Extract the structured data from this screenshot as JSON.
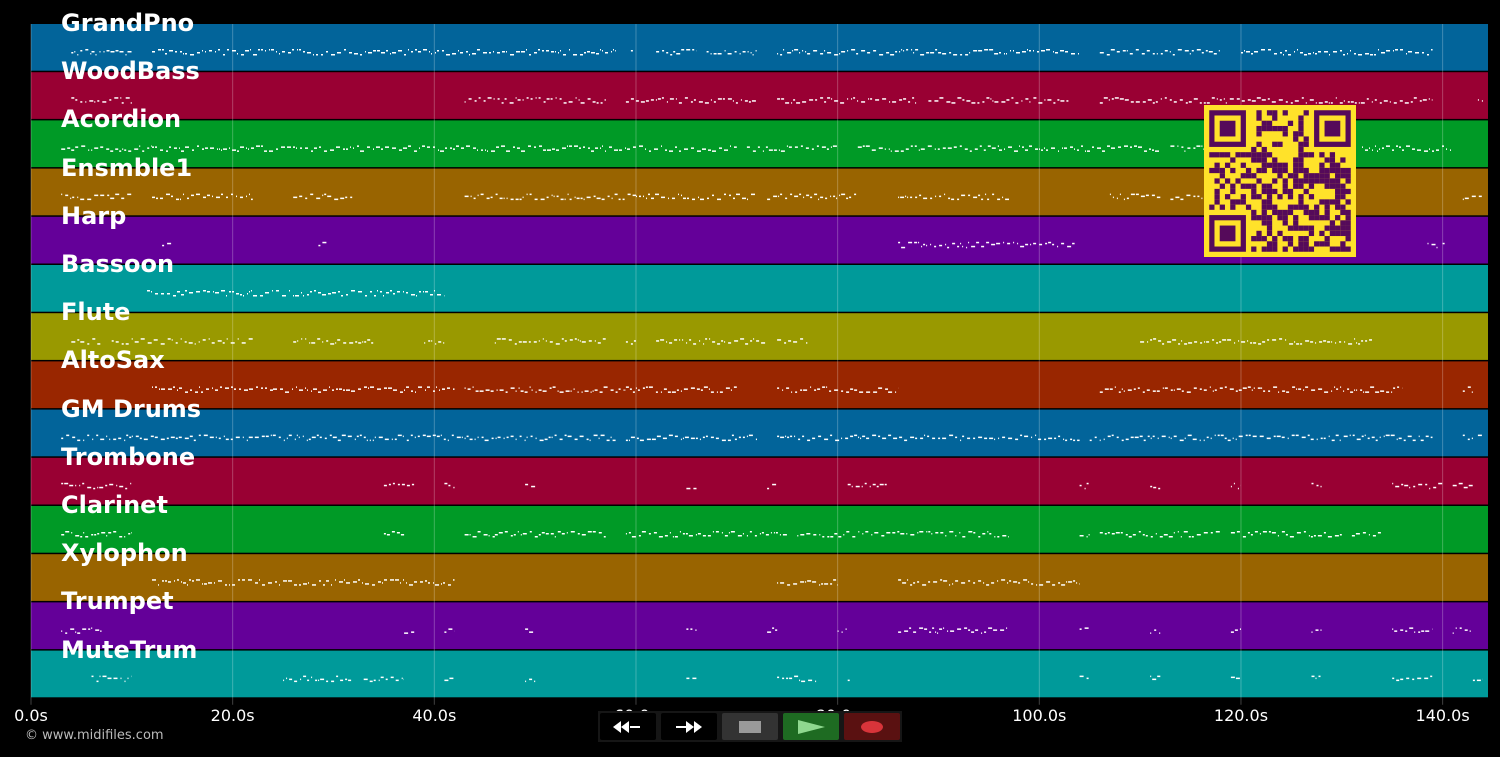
{
  "colors": {
    "background": "#000000",
    "note": "#ffffff",
    "grid": "#ffffff",
    "qr_fg": "#550a5a",
    "qr_bg": "#ffe22a"
  },
  "tracks": [
    {
      "name": "GrandPno",
      "color": "#02649a"
    },
    {
      "name": "WoodBass",
      "color": "#990033"
    },
    {
      "name": "Acordion",
      "color": "#009a26"
    },
    {
      "name": "Ensmble1",
      "color": "#996400"
    },
    {
      "name": "Harp",
      "color": "#640099"
    },
    {
      "name": "Bassoon",
      "color": "#009a9a"
    },
    {
      "name": "Flute",
      "color": "#999900"
    },
    {
      "name": "AltoSax",
      "color": "#992600"
    },
    {
      "name": "GM Drums",
      "color": "#02649a"
    },
    {
      "name": "Trombone",
      "color": "#990033"
    },
    {
      "name": "Clarinet",
      "color": "#009a26"
    },
    {
      "name": "Xylophon",
      "color": "#996400"
    },
    {
      "name": "Trumpet",
      "color": "#640099"
    },
    {
      "name": "MuteTrum",
      "color": "#009a9a"
    }
  ],
  "timeline": {
    "min_seconds": 0,
    "max_seconds": 144.5,
    "ticks": [
      {
        "value": 0,
        "label": "0.0s"
      },
      {
        "value": 20,
        "label": "20.0s"
      },
      {
        "value": 40,
        "label": "40.0s"
      },
      {
        "value": 60,
        "label": "60.0s"
      },
      {
        "value": 80,
        "label": "80.0s"
      },
      {
        "value": 100,
        "label": "100.0s"
      },
      {
        "value": 120,
        "label": "120.0s"
      },
      {
        "value": 140,
        "label": "140.0s"
      }
    ]
  },
  "notes": [
    {
      "track": 0,
      "segments": [
        [
          4,
          6
        ],
        [
          6,
          10
        ],
        [
          12,
          58
        ],
        [
          59.5,
          60
        ],
        [
          62,
          63
        ],
        [
          63,
          66
        ],
        [
          67,
          72
        ],
        [
          74,
          96
        ],
        [
          96,
          104
        ],
        [
          106,
          118
        ],
        [
          120,
          139
        ]
      ]
    },
    {
      "track": 1,
      "segments": [
        [
          4,
          9
        ],
        [
          9,
          10
        ],
        [
          43,
          57
        ],
        [
          59,
          72
        ],
        [
          74,
          88
        ],
        [
          89,
          103
        ],
        [
          106,
          139
        ],
        [
          143.5,
          144
        ]
      ]
    },
    {
      "track": 2,
      "segments": [
        [
          3,
          12
        ],
        [
          12,
          70
        ],
        [
          71,
          80
        ],
        [
          82,
          96
        ],
        [
          96,
          112
        ],
        [
          113,
          120
        ],
        [
          132,
          141
        ]
      ]
    },
    {
      "track": 3,
      "segments": [
        [
          3,
          10
        ],
        [
          12,
          22
        ],
        [
          26,
          32
        ],
        [
          43,
          60
        ],
        [
          60,
          72
        ],
        [
          73,
          82
        ],
        [
          86,
          97
        ],
        [
          107,
          112
        ],
        [
          113,
          130
        ],
        [
          142,
          144
        ]
      ]
    },
    {
      "track": 4,
      "segments": [
        [
          13,
          14
        ],
        [
          28.5,
          29.5
        ],
        [
          86,
          103.5
        ],
        [
          138.5,
          139.5
        ],
        [
          140,
          140.5
        ]
      ]
    },
    {
      "track": 5,
      "segments": [
        [
          11.5,
          41
        ]
      ]
    },
    {
      "track": 6,
      "segments": [
        [
          4,
          7
        ],
        [
          8,
          22
        ],
        [
          26,
          34
        ],
        [
          39,
          41
        ],
        [
          46,
          57
        ],
        [
          59,
          60
        ],
        [
          62,
          73
        ],
        [
          74,
          77
        ],
        [
          110,
          133
        ]
      ]
    },
    {
      "track": 7,
      "segments": [
        [
          12,
          24
        ],
        [
          24,
          42
        ],
        [
          43,
          59
        ],
        [
          59,
          70
        ],
        [
          74,
          85
        ],
        [
          85,
          86
        ],
        [
          106,
          122
        ],
        [
          122,
          136
        ],
        [
          142,
          143
        ]
      ]
    },
    {
      "track": 8,
      "segments": [
        [
          3,
          10
        ],
        [
          10,
          43
        ],
        [
          43,
          58
        ],
        [
          59,
          72
        ],
        [
          74,
          104
        ],
        [
          105,
          139
        ],
        [
          142,
          143
        ],
        [
          143.5,
          144
        ]
      ]
    },
    {
      "track": 9,
      "segments": [
        [
          3,
          10
        ],
        [
          35,
          38
        ],
        [
          41,
          42
        ],
        [
          49,
          50
        ],
        [
          65,
          66
        ],
        [
          73,
          74
        ],
        [
          81,
          85
        ],
        [
          104,
          105
        ],
        [
          111,
          112
        ],
        [
          119,
          120
        ],
        [
          127,
          128
        ],
        [
          135,
          140
        ],
        [
          141,
          143
        ]
      ]
    },
    {
      "track": 10,
      "segments": [
        [
          3,
          10
        ],
        [
          35,
          37
        ],
        [
          43,
          46
        ],
        [
          46,
          57
        ],
        [
          59,
          75
        ],
        [
          76,
          97
        ],
        [
          104,
          105
        ],
        [
          106,
          118
        ],
        [
          119,
          130
        ],
        [
          131,
          134
        ]
      ]
    },
    {
      "track": 11,
      "segments": [
        [
          12,
          42
        ],
        [
          74,
          80
        ],
        [
          86,
          104
        ]
      ]
    },
    {
      "track": 12,
      "segments": [
        [
          3,
          7
        ],
        [
          37,
          38
        ],
        [
          41,
          42
        ],
        [
          49,
          50
        ],
        [
          65,
          66
        ],
        [
          73,
          74
        ],
        [
          80,
          81
        ],
        [
          86,
          97
        ],
        [
          104,
          105
        ],
        [
          111,
          112
        ],
        [
          119,
          120
        ],
        [
          127,
          128
        ],
        [
          135,
          139
        ],
        [
          141,
          143
        ]
      ]
    },
    {
      "track": 13,
      "segments": [
        [
          6,
          10
        ],
        [
          25,
          32
        ],
        [
          33,
          37
        ],
        [
          41,
          42
        ],
        [
          49,
          50
        ],
        [
          65,
          66
        ],
        [
          74,
          78
        ],
        [
          81,
          81.5
        ],
        [
          104,
          105
        ],
        [
          111,
          112
        ],
        [
          119,
          120
        ],
        [
          127,
          128
        ],
        [
          135,
          139
        ],
        [
          143,
          144
        ]
      ]
    }
  ],
  "copyright": "© www.midifiles.com",
  "transport": {
    "buttons": [
      {
        "name": "rewind",
        "icon": "rewind-icon",
        "color": "#000000"
      },
      {
        "name": "fast-forward",
        "icon": "fast-forward-icon",
        "color": "#000000"
      },
      {
        "name": "stop",
        "icon": "stop-icon",
        "color": "#333333"
      },
      {
        "name": "play",
        "icon": "play-icon",
        "color": "#1e6b22"
      },
      {
        "name": "record",
        "icon": "record-icon",
        "color": "#5a1111"
      }
    ]
  }
}
